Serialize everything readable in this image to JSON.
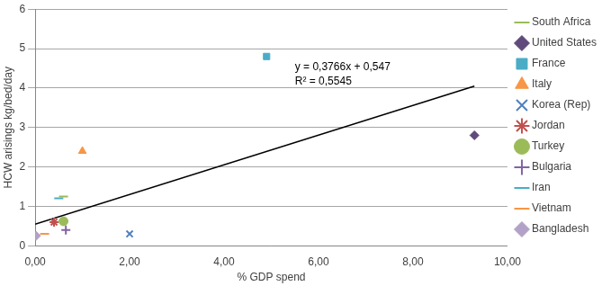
{
  "chart_data": {
    "type": "scatter",
    "x_label": "% GDP spend",
    "y_label": "HCW arisings kg/bed/day",
    "xlim": [
      0,
      10
    ],
    "xticks": [
      {
        "value": 0,
        "label": "0,00"
      },
      {
        "value": 2,
        "label": "2,00"
      },
      {
        "value": 4,
        "label": "4,00"
      },
      {
        "value": 6,
        "label": "6,00"
      },
      {
        "value": 8,
        "label": "8,00"
      },
      {
        "value": 10,
        "label": "10,00"
      }
    ],
    "ylim": [
      0,
      6
    ],
    "yticks": [
      0,
      1,
      2,
      3,
      4,
      5,
      6
    ],
    "grid": "y",
    "legend": "right",
    "series": [
      {
        "name": "South Africa",
        "color": "#9bbb59",
        "marker": "dash",
        "x": [
          0.6
        ],
        "values": [
          1.25
        ]
      },
      {
        "name": "United States",
        "color": "#604a7b",
        "marker": "diamond",
        "x": [
          9.3
        ],
        "values": [
          2.8
        ]
      },
      {
        "name": "France",
        "color": "#4bacc6",
        "marker": "square",
        "x": [
          4.9
        ],
        "values": [
          4.8
        ]
      },
      {
        "name": "Italy",
        "color": "#f79646",
        "marker": "triangle",
        "x": [
          1.0
        ],
        "values": [
          2.4
        ]
      },
      {
        "name": "Korea (Rep)",
        "color": "#4f81bd",
        "marker": "x",
        "x": [
          2.0
        ],
        "values": [
          0.3
        ]
      },
      {
        "name": "Jordan",
        "color": "#c0504d",
        "marker": "star",
        "x": [
          0.4
        ],
        "values": [
          0.6
        ]
      },
      {
        "name": "Turkey",
        "color": "#9bbb59",
        "marker": "circle",
        "x": [
          0.6
        ],
        "values": [
          0.62
        ]
      },
      {
        "name": "Bulgaria",
        "color": "#8064a2",
        "marker": "plus",
        "x": [
          0.65
        ],
        "values": [
          0.4
        ]
      },
      {
        "name": "Iran",
        "color": "#4bacc6",
        "marker": "dash",
        "x": [
          0.5
        ],
        "values": [
          1.2
        ]
      },
      {
        "name": "Vietnam",
        "color": "#f79646",
        "marker": "dash",
        "x": [
          0.2
        ],
        "values": [
          0.3
        ]
      },
      {
        "name": "Bangladesh",
        "color": "#b3a2c7",
        "marker": "diamond",
        "x": [
          0.02
        ],
        "values": [
          0.25
        ]
      }
    ],
    "trendline": {
      "color": "#000000",
      "x": [
        0,
        9.3
      ],
      "values": [
        0.547,
        4.05
      ]
    },
    "annotations": [
      "y = 0,3766x + 0,547",
      "R² = 0,5545"
    ]
  }
}
